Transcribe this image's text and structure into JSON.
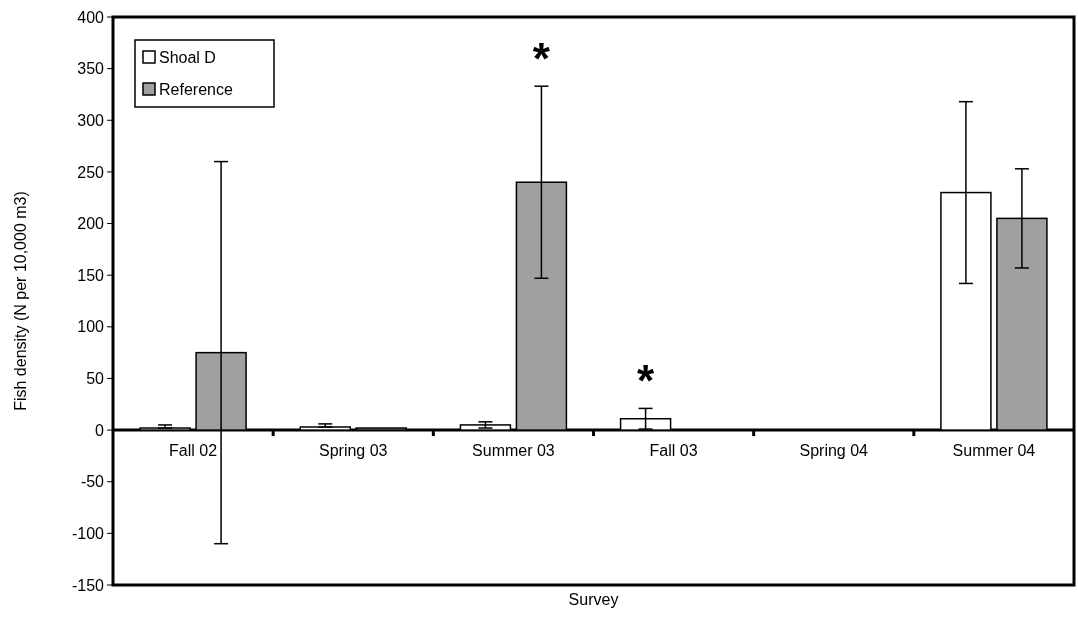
{
  "chart_data": {
    "type": "bar",
    "xlabel": "Survey",
    "ylabel": "Fish density (N per 10,000 m3)",
    "categories": [
      "Fall 02",
      "Spring 03",
      "Summer 03",
      "Fall 03",
      "Spring 04",
      "Summer 04"
    ],
    "series": [
      {
        "name": "Shoal D",
        "color": "#ffffff",
        "values": [
          2,
          3,
          5,
          11,
          0,
          230
        ],
        "errors": [
          [
            2,
            5
          ],
          [
            3,
            6
          ],
          3,
          10,
          null,
          88
        ]
      },
      {
        "name": "Reference",
        "color": "#a0a0a0",
        "values": [
          75,
          2,
          240,
          0,
          0,
          205
        ],
        "errors": [
          185,
          null,
          93,
          null,
          null,
          48
        ]
      }
    ],
    "ylim": [
      -150,
      400
    ],
    "yticks": [
      -150,
      -100,
      -50,
      0,
      50,
      100,
      150,
      200,
      250,
      300,
      350,
      400
    ],
    "grid": false,
    "legend": "top left",
    "annotations": [
      "*",
      "*"
    ]
  }
}
